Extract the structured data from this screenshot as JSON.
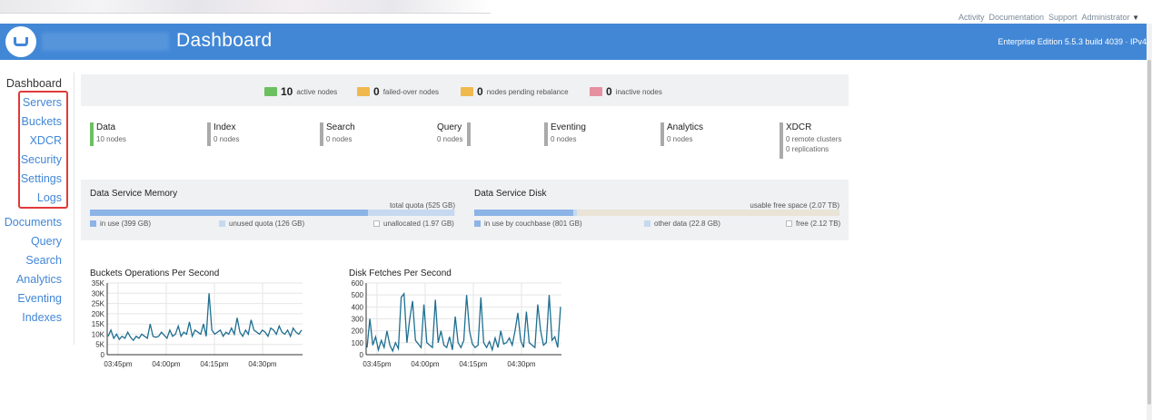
{
  "topnav": {
    "links": [
      "Activity",
      "Documentation",
      "Support",
      "Administrator"
    ]
  },
  "header": {
    "title": "Dashboard",
    "edition": "Enterprise Edition 5.5.3 build 4039 · IPv4"
  },
  "sidebar": {
    "active": "Dashboard",
    "items": [
      "Servers",
      "Buckets",
      "XDCR",
      "Security",
      "Settings",
      "Logs"
    ],
    "items2": [
      "Documents",
      "Query",
      "Search",
      "Analytics",
      "Eventing",
      "Indexes"
    ]
  },
  "nodes": {
    "active": {
      "count": "10",
      "label": "active nodes"
    },
    "failed": {
      "count": "0",
      "label": "failed-over nodes"
    },
    "pending": {
      "count": "0",
      "label": "nodes pending rebalance"
    },
    "inactive": {
      "count": "0",
      "label": "inactive nodes"
    }
  },
  "colors": {
    "accent": "#4287d6",
    "active_node": "#6cc060",
    "warn_node": "#f0b94e",
    "inactive_node": "#e58fa0",
    "memory_in_use": "#8cb4e6",
    "disk_other": "#e9e4d6"
  },
  "services": [
    {
      "name": "Data",
      "lines": [
        "10 nodes"
      ]
    },
    {
      "name": "Index",
      "lines": [
        "0 nodes"
      ]
    },
    {
      "name": "Search",
      "lines": [
        "0 nodes"
      ]
    },
    {
      "name": "Query",
      "lines": [
        "0 nodes"
      ]
    },
    {
      "name": "Eventing",
      "lines": [
        "0 nodes"
      ]
    },
    {
      "name": "Analytics",
      "lines": [
        "0 nodes"
      ]
    },
    {
      "name": "XDCR",
      "lines": [
        "0 remote clusters",
        "0 replications"
      ]
    }
  ],
  "memory": {
    "title": "Data Service Memory",
    "quota": "total quota (525 GB)",
    "in_use": "in use (399 GB)",
    "unused": "unused quota (126 GB)",
    "unallocated": "unallocated (1.97 GB)",
    "in_use_fraction": 0.76,
    "unused_fraction": 0.24
  },
  "disk": {
    "title": "Data Service Disk",
    "free_space": "usable free space (2.07 TB)",
    "in_use": "in use by couchbase (801 GB)",
    "other": "other data (22.8 GB)",
    "free": "free (2.12 TB)",
    "in_use_fraction": 0.27,
    "other_fraction": 0.01
  },
  "chart_data": [
    {
      "type": "line",
      "title": "Buckets Operations Per Second",
      "yticks": [
        "35K",
        "30K",
        "25K",
        "20K",
        "15K",
        "10K",
        "5K",
        "0"
      ],
      "xticks": [
        "03:45pm",
        "04:00pm",
        "04:15pm",
        "04:30pm"
      ],
      "ylim": [
        0,
        35000
      ],
      "values": [
        9000,
        12000,
        8000,
        10000,
        7500,
        9000,
        8000,
        11000,
        8500,
        7000,
        9000,
        8000,
        10000,
        9000,
        8000,
        15000,
        9000,
        8500,
        9000,
        11000,
        9500,
        8000,
        12000,
        9000,
        10000,
        14000,
        9000,
        11000,
        10000,
        16000,
        9000,
        12000,
        11000,
        10000,
        15000,
        9000,
        30000,
        12000,
        10000,
        11000,
        12000,
        9000,
        11000,
        10000,
        13000,
        10000,
        18000,
        11000,
        9000,
        12000,
        10000,
        17000,
        12000,
        11000,
        10000,
        12000,
        11000,
        9000,
        13000,
        12000,
        10000,
        14000,
        11000,
        10000,
        12000,
        9000,
        13000,
        11000,
        10000,
        12000
      ]
    },
    {
      "type": "line",
      "title": "Disk Fetches Per Second",
      "yticks": [
        "600",
        "500",
        "400",
        "300",
        "200",
        "100",
        "0"
      ],
      "xticks": [
        "03:45pm",
        "04:00pm",
        "04:15pm",
        "04:30pm"
      ],
      "ylim": [
        0,
        600
      ],
      "values": [
        60,
        300,
        80,
        150,
        40,
        120,
        60,
        200,
        80,
        30,
        100,
        50,
        480,
        510,
        100,
        300,
        450,
        120,
        90,
        60,
        420,
        100,
        80,
        60,
        460,
        100,
        200,
        80,
        60,
        150,
        40,
        320,
        100,
        60,
        120,
        500,
        200,
        90,
        60,
        80,
        480,
        100,
        60,
        110,
        40,
        140,
        60,
        200,
        90,
        100,
        140,
        80,
        200,
        350,
        120,
        60,
        360,
        100,
        80,
        60,
        420,
        200,
        80,
        100,
        500,
        120,
        150,
        60,
        400
      ]
    }
  ]
}
